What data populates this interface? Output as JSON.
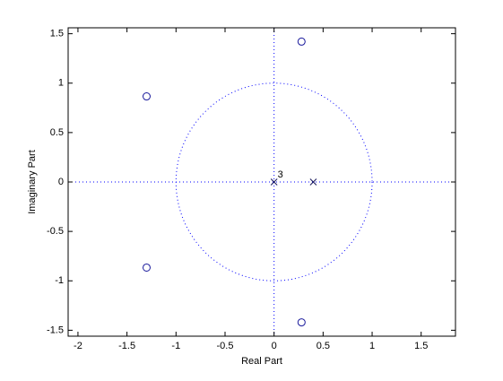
{
  "chart_data": {
    "type": "zplane",
    "x_label": "Real Part",
    "y_label": "Imaginary Part",
    "xlim": [
      -2.1,
      1.85
    ],
    "ylim": [
      -1.56,
      1.56
    ],
    "xticks": [
      -2,
      -1.5,
      -1,
      -0.5,
      0,
      0.5,
      1,
      1.5
    ],
    "yticks": [
      -1.5,
      -1,
      -0.5,
      0,
      0.5,
      1,
      1.5
    ],
    "guide_color": "#0000ff",
    "series": [
      {
        "marker": "circle",
        "color": "#1a1a9c",
        "x": [
          -1.3,
          -1.3,
          0.28,
          0.28
        ],
        "y": [
          0.866,
          -0.866,
          1.42,
          -1.42
        ]
      },
      {
        "marker": "cross",
        "color": "#1a1a5c",
        "x": [
          0,
          0.4
        ],
        "y": [
          0,
          0
        ],
        "multiplicity": [
          3,
          1
        ]
      }
    ]
  }
}
